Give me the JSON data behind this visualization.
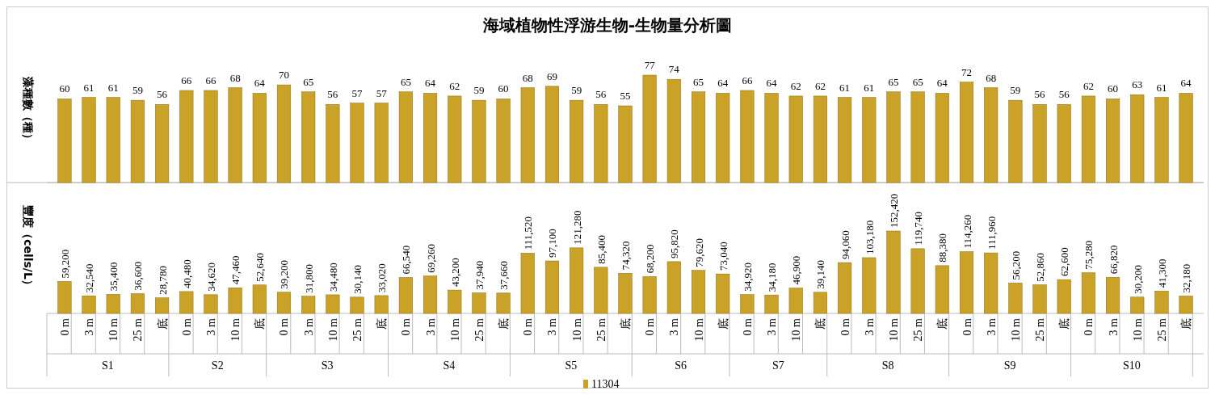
{
  "chart_data": [
    {
      "type": "bar",
      "title": "海域植物性浮游生物-生物量分析圖",
      "ylabel": "藻種數（種）",
      "categories": [
        "0 m",
        "3 m",
        "10 m",
        "25 m",
        "底",
        "0 m",
        "3 m",
        "10 m",
        "底",
        "0 m",
        "3 m",
        "10 m",
        "25 m",
        "底",
        "0 m",
        "3 m",
        "10 m",
        "25 m",
        "底",
        "0 m",
        "3 m",
        "10 m",
        "25 m",
        "底",
        "0 m",
        "3 m",
        "10 m",
        "底",
        "0 m",
        "3 m",
        "10 m",
        "底",
        "0 m",
        "3 m",
        "10 m",
        "25 m",
        "底",
        "0 m",
        "3 m",
        "10 m",
        "25 m",
        "底",
        "0 m",
        "3 m",
        "10 m",
        "25 m",
        "底"
      ],
      "series": [
        {
          "color": "#c9a227",
          "values": [
            60,
            61,
            61,
            59,
            56,
            66,
            66,
            68,
            64,
            70,
            65,
            56,
            57,
            57,
            65,
            64,
            62,
            59,
            60,
            68,
            69,
            59,
            56,
            55,
            77,
            74,
            65,
            64,
            66,
            64,
            62,
            62,
            61,
            61,
            65,
            65,
            64,
            72,
            68,
            59,
            56,
            56,
            62,
            60,
            63,
            61,
            64
          ]
        }
      ],
      "data_labels": true,
      "tick_labels": false
    },
    {
      "type": "bar",
      "ylabel": "豐度（cells/L）",
      "categories": [
        "0 m",
        "3 m",
        "10 m",
        "25 m",
        "底",
        "0 m",
        "3 m",
        "10 m",
        "底",
        "0 m",
        "3 m",
        "10 m",
        "25 m",
        "底",
        "0 m",
        "3 m",
        "10 m",
        "25 m",
        "底",
        "0 m",
        "3 m",
        "10 m",
        "25 m",
        "底",
        "0 m",
        "3 m",
        "10 m",
        "底",
        "0 m",
        "3 m",
        "10 m",
        "底",
        "0 m",
        "3 m",
        "10 m",
        "25 m",
        "底",
        "0 m",
        "3 m",
        "10 m",
        "25 m",
        "底",
        "0 m",
        "3 m",
        "10 m",
        "25 m",
        "底"
      ],
      "series": [
        {
          "name": "11304",
          "color": "#c9a227",
          "values": [
            59200,
            32540,
            35400,
            36600,
            28780,
            40480,
            34620,
            47460,
            52640,
            39200,
            31800,
            34480,
            30140,
            33020,
            66540,
            69260,
            43200,
            37940,
            37660,
            111520,
            97100,
            121280,
            85400,
            74320,
            68200,
            95820,
            79620,
            73040,
            34920,
            34180,
            46900,
            39140,
            94060,
            103180,
            152420,
            119740,
            88380,
            114260,
            111960,
            56200,
            52860,
            62600,
            75280,
            66820,
            30200,
            41300,
            32180
          ],
          "value_labels": [
            "59,200",
            "32,540",
            "35,400",
            "36,600",
            "28,780",
            "40,480",
            "34,620",
            "47,460",
            "52,640",
            "39,200",
            "31,800",
            "34,480",
            "30,140",
            "33,020",
            "66,540",
            "69,260",
            "43,200",
            "37,940",
            "37,660",
            "111,520",
            "97,100",
            "121,280",
            "85,400",
            "74,320",
            "68,200",
            "95,820",
            "79,620",
            "73,040",
            "34,920",
            "34,180",
            "46,900",
            "39,140",
            "94,060",
            "103,180",
            "152,420",
            "119,740",
            "88,380",
            "114,260",
            "111,960",
            "56,200",
            "52,860",
            "62,600",
            "75,280",
            "66,820",
            "30,200",
            "41,300",
            "32,180"
          ]
        }
      ],
      "tick_labels": "x",
      "legend": "bottom",
      "annotations": [
        "S1",
        "S2",
        "S3",
        "S4",
        "S5",
        "S6",
        "S7",
        "S8",
        "S9",
        "S10"
      ]
    }
  ]
}
